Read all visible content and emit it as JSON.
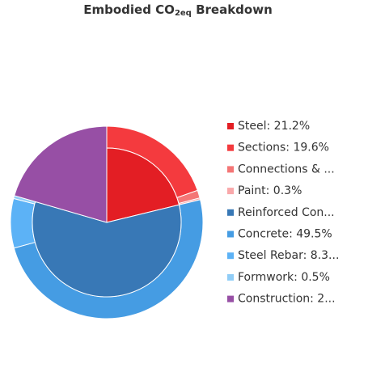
{
  "chart_data": {
    "type": "nested-pie",
    "title": {
      "main": "Embodied CO",
      "sub": "2eq",
      "rest": " Breakdown"
    },
    "items": [
      {
        "label": "Steel: 21.2%",
        "value": 21.2,
        "color": "#e31e24",
        "ring": "inner"
      },
      {
        "label": "Sections: 19.6%",
        "value": 19.6,
        "color": "#f43a3e",
        "ring": "outer"
      },
      {
        "label": "Connections & ...",
        "value": 1.3,
        "color": "#f47676",
        "ring": "outer"
      },
      {
        "label": "Paint: 0.3%",
        "value": 0.3,
        "color": "#f9a8aa",
        "ring": "outer"
      },
      {
        "label": "Reinforced Con...",
        "value": 58.3,
        "color": "#3878b6",
        "ring": "inner"
      },
      {
        "label": "Concrete: 49.5%",
        "value": 49.5,
        "color": "#459ce3",
        "ring": "outer"
      },
      {
        "label": "Steel Rebar: 8.3...",
        "value": 8.3,
        "color": "#5cb2f6",
        "ring": "outer"
      },
      {
        "label": "Formwork: 0.5%",
        "value": 0.5,
        "color": "#90cdf7",
        "ring": "outer"
      },
      {
        "label": "Construction: 2...",
        "value": 20.5,
        "color": "#974fa5",
        "ring": "full"
      }
    ]
  }
}
